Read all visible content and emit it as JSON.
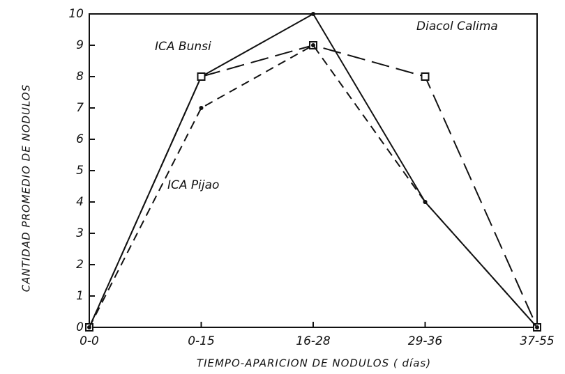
{
  "chart_data": {
    "type": "line",
    "xlabel": "TIEMPO-APARICION DE NODULOS ( días)",
    "ylabel": "CANTIDAD PROMEDIO DE NODULOS",
    "categories": [
      "0-0",
      "0-15",
      "16-28",
      "29-36",
      "37-55"
    ],
    "series": [
      {
        "name": "ICA Bunsi",
        "color": "#111111",
        "dash": "solid",
        "marker": "dot",
        "values": [
          0,
          8,
          10,
          4,
          0
        ]
      },
      {
        "name": "Diacol Calima",
        "color": "#111111",
        "dash": "long",
        "marker": "square",
        "values": [
          0,
          8,
          9,
          8,
          0
        ]
      },
      {
        "name": "ICA Pijao",
        "color": "#111111",
        "dash": "short",
        "marker": "dot",
        "values": [
          0,
          7,
          9,
          4,
          0
        ]
      }
    ],
    "ylim": [
      0,
      10
    ],
    "yticks": [
      0,
      1,
      2,
      3,
      4,
      5,
      6,
      7,
      8,
      9,
      10
    ],
    "grid": false
  }
}
